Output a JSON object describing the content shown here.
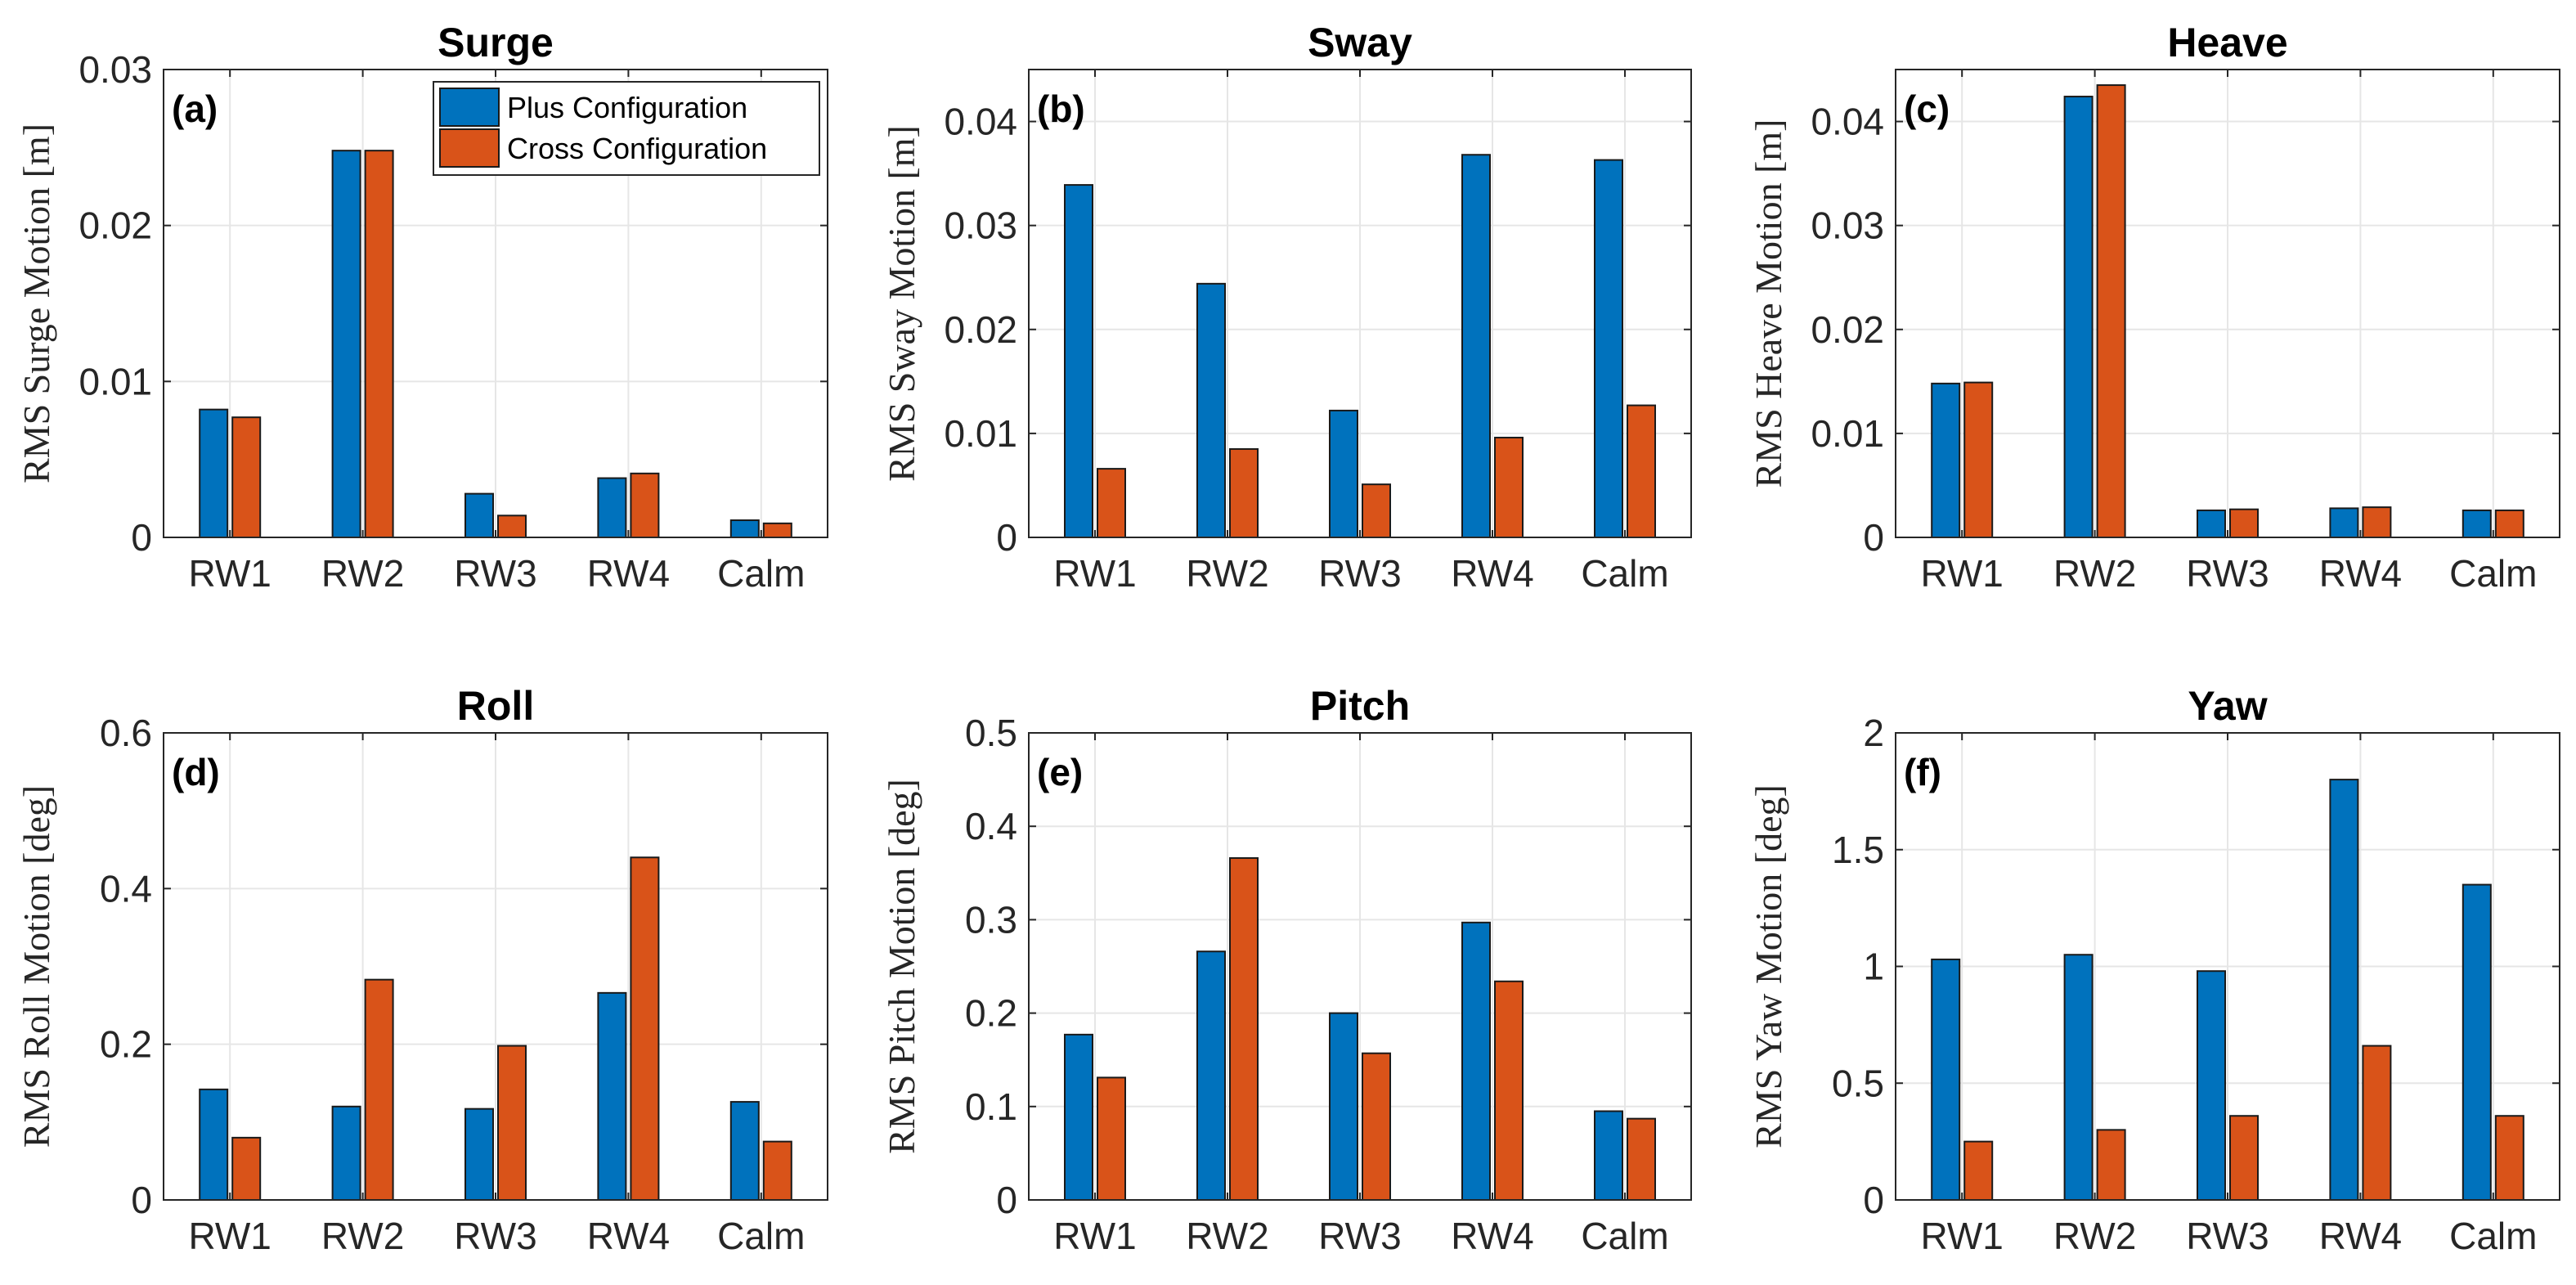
{
  "chart_data": [
    {
      "type": "bar",
      "title": "Surge",
      "panel_label": "(a)",
      "ylabel": "RMS Surge Motion [m]",
      "categories": [
        "RW1",
        "RW2",
        "RW3",
        "RW4",
        "Calm"
      ],
      "ylim": [
        0,
        0.03
      ],
      "yticks": [
        0,
        0.01,
        0.02,
        0.03
      ],
      "ytick_labels": [
        "0",
        "0.01",
        "0.02",
        "0.03"
      ],
      "series": [
        {
          "name": "Plus Configuration",
          "values": [
            0.0082,
            0.0248,
            0.0028,
            0.0038,
            0.0011
          ]
        },
        {
          "name": "Cross Configuration",
          "values": [
            0.0077,
            0.0248,
            0.0014,
            0.0041,
            0.0009
          ]
        }
      ],
      "legend": true,
      "legend_location": "top-right",
      "grid": true
    },
    {
      "type": "bar",
      "title": "Sway",
      "panel_label": "(b)",
      "ylabel": "RMS Sway Motion [m]",
      "categories": [
        "RW1",
        "RW2",
        "RW3",
        "RW4",
        "Calm"
      ],
      "ylim": [
        0,
        0.045
      ],
      "yticks": [
        0,
        0.01,
        0.02,
        0.03,
        0.04
      ],
      "ytick_labels": [
        "0",
        "0.01",
        "0.02",
        "0.03",
        "0.04"
      ],
      "series": [
        {
          "name": "Plus Configuration",
          "values": [
            0.0339,
            0.0244,
            0.0122,
            0.0368,
            0.0363
          ]
        },
        {
          "name": "Cross Configuration",
          "values": [
            0.0066,
            0.0085,
            0.0051,
            0.0096,
            0.0127
          ]
        }
      ],
      "legend": false,
      "grid": true
    },
    {
      "type": "bar",
      "title": "Heave",
      "panel_label": "(c)",
      "ylabel": "RMS Heave Motion [m]",
      "categories": [
        "RW1",
        "RW2",
        "RW3",
        "RW4",
        "Calm"
      ],
      "ylim": [
        0,
        0.045
      ],
      "yticks": [
        0,
        0.01,
        0.02,
        0.03,
        0.04
      ],
      "ytick_labels": [
        "0",
        "0.01",
        "0.02",
        "0.03",
        "0.04"
      ],
      "series": [
        {
          "name": "Plus Configuration",
          "values": [
            0.0148,
            0.0424,
            0.0026,
            0.0028,
            0.0026
          ]
        },
        {
          "name": "Cross Configuration",
          "values": [
            0.0149,
            0.0435,
            0.0027,
            0.0029,
            0.0026
          ]
        }
      ],
      "legend": false,
      "grid": true
    },
    {
      "type": "bar",
      "title": "Roll",
      "panel_label": "(d)",
      "ylabel": "RMS Roll Motion [deg]",
      "categories": [
        "RW1",
        "RW2",
        "RW3",
        "RW4",
        "Calm"
      ],
      "ylim": [
        0,
        0.6
      ],
      "yticks": [
        0,
        0.2,
        0.4,
        0.6
      ],
      "ytick_labels": [
        "0",
        "0.2",
        "0.4",
        "0.6"
      ],
      "series": [
        {
          "name": "Plus Configuration",
          "values": [
            0.142,
            0.12,
            0.117,
            0.266,
            0.126
          ]
        },
        {
          "name": "Cross Configuration",
          "values": [
            0.08,
            0.283,
            0.198,
            0.44,
            0.075
          ]
        }
      ],
      "legend": false,
      "grid": true
    },
    {
      "type": "bar",
      "title": "Pitch",
      "panel_label": "(e)",
      "ylabel": "RMS Pitch Motion [deg]",
      "categories": [
        "RW1",
        "RW2",
        "RW3",
        "RW4",
        "Calm"
      ],
      "ylim": [
        0,
        0.5
      ],
      "yticks": [
        0,
        0.1,
        0.2,
        0.3,
        0.4,
        0.5
      ],
      "ytick_labels": [
        "0",
        "0.1",
        "0.2",
        "0.3",
        "0.4",
        "0.5"
      ],
      "series": [
        {
          "name": "Plus Configuration",
          "values": [
            0.177,
            0.266,
            0.2,
            0.297,
            0.095
          ]
        },
        {
          "name": "Cross Configuration",
          "values": [
            0.131,
            0.366,
            0.157,
            0.234,
            0.087
          ]
        }
      ],
      "legend": false,
      "grid": true
    },
    {
      "type": "bar",
      "title": "Yaw",
      "panel_label": "(f)",
      "ylabel": "RMS Yaw Motion [deg]",
      "categories": [
        "RW1",
        "RW2",
        "RW3",
        "RW4",
        "Calm"
      ],
      "ylim": [
        0,
        2
      ],
      "yticks": [
        0,
        0.5,
        1,
        1.5,
        2
      ],
      "ytick_labels": [
        "0",
        "0.5",
        "1",
        "1.5",
        "2"
      ],
      "series": [
        {
          "name": "Plus Configuration",
          "values": [
            1.03,
            1.05,
            0.98,
            1.8,
            1.35
          ]
        },
        {
          "name": "Cross Configuration",
          "values": [
            0.25,
            0.3,
            0.36,
            0.66,
            0.36
          ]
        }
      ],
      "legend": false,
      "grid": true
    }
  ],
  "colors": {
    "Plus Configuration": "#0072BD",
    "Cross Configuration": "#D95319"
  }
}
